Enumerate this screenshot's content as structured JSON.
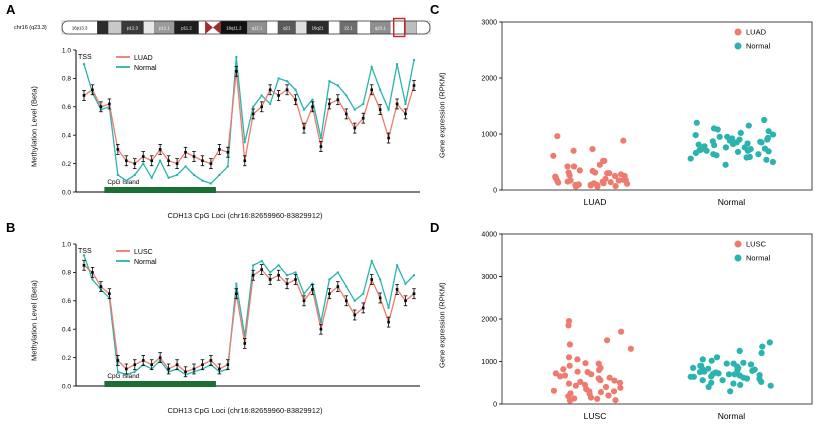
{
  "panels": {
    "a": {
      "letter": "A"
    },
    "b": {
      "letter": "B"
    },
    "c": {
      "letter": "C"
    },
    "d": {
      "letter": "D"
    }
  },
  "colors": {
    "cancer": "#EE7B6F",
    "normal": "#2BB3AF",
    "island": "#1b6e34",
    "marker": "#000000",
    "frame": "#444444",
    "highlight": "#d81e1e"
  },
  "ideogram": {
    "chrom_label": "chr16 (q23.3)",
    "highlight_pos": 0.915,
    "bands": [
      {
        "label": "16p13.3",
        "fill": "#ffffff",
        "tc": "#000000",
        "w": 1.6
      },
      {
        "label": "",
        "fill": "#2b2b2b",
        "tc": "#fff",
        "w": 0.5
      },
      {
        "label": "",
        "fill": "#c8c8c8",
        "tc": "#000",
        "w": 0.6
      },
      {
        "label": "p12.3",
        "fill": "#3a3a3a",
        "tc": "#ffffff",
        "w": 1.0
      },
      {
        "label": "",
        "fill": "#e8e8e8",
        "tc": "#000",
        "w": 0.5
      },
      {
        "label": "p12.1",
        "fill": "#9a9a9a",
        "tc": "#ffffff",
        "w": 0.9
      },
      {
        "label": "p11.2",
        "fill": "#1f1f1f",
        "tc": "#ffffff",
        "w": 1.1
      },
      {
        "label": "",
        "fill": "#ffffff",
        "tc": "#000",
        "w": 0.3
      },
      {
        "cen": true,
        "label": "",
        "fill": "#a02c2c",
        "tc": "#fff",
        "w": 0.7
      },
      {
        "label": "16q11.2",
        "fill": "#111111",
        "tc": "#ffffff",
        "w": 1.2
      },
      {
        "label": "q12.1",
        "fill": "#8f8f8f",
        "tc": "#ffffff",
        "w": 0.9
      },
      {
        "label": "",
        "fill": "#ffffff",
        "tc": "#000",
        "w": 0.5
      },
      {
        "label": "q21",
        "fill": "#5a5a5a",
        "tc": "#ffffff",
        "w": 0.8
      },
      {
        "label": "",
        "fill": "#e0e0e0",
        "tc": "#000",
        "w": 0.5
      },
      {
        "label": "16q21",
        "fill": "#2b2b2b",
        "tc": "#ffffff",
        "w": 1.0
      },
      {
        "label": "",
        "fill": "#ffffff",
        "tc": "#000",
        "w": 0.5
      },
      {
        "label": "22.1",
        "fill": "#6e6e6e",
        "tc": "#ffffff",
        "w": 0.8
      },
      {
        "label": "",
        "fill": "#ffffff",
        "tc": "#000",
        "w": 0.6
      },
      {
        "label": "q23.1",
        "fill": "#8f8f8f",
        "tc": "#ffffff",
        "w": 0.9
      },
      {
        "label": "",
        "fill": "#ffffff",
        "tc": "#000",
        "w": 0.7
      },
      {
        "label": "",
        "fill": "#bdbdbd",
        "tc": "#000",
        "w": 0.5
      },
      {
        "label": "",
        "fill": "#ffffff",
        "tc": "#000",
        "w": 0.6
      }
    ]
  },
  "chart_data": [
    {
      "type": "line",
      "panel": "A",
      "xlabel": "CDH13 CpG Loci (chr16:82659960-83829912)",
      "ylabel": "Methylation Level (Beta)",
      "ylim": [
        0,
        1
      ],
      "yticks": [
        0.0,
        0.2,
        0.4,
        0.6,
        0.8,
        1.0
      ],
      "annotations": {
        "tss": "TSS",
        "cpg_island": {
          "label": "CpG Island",
          "start_index": 3,
          "end_index": 15
        }
      },
      "legend_position": "top-left-inside",
      "series": [
        {
          "name": "LUAD",
          "values": [
            0.68,
            0.72,
            0.6,
            0.62,
            0.3,
            0.22,
            0.2,
            0.25,
            0.22,
            0.3,
            0.22,
            0.2,
            0.28,
            0.25,
            0.22,
            0.2,
            0.3,
            0.28,
            0.85,
            0.22,
            0.55,
            0.6,
            0.72,
            0.68,
            0.72,
            0.65,
            0.45,
            0.6,
            0.32,
            0.62,
            0.65,
            0.55,
            0.45,
            0.52,
            0.72,
            0.58,
            0.38,
            0.62,
            0.55,
            0.75
          ]
        },
        {
          "name": "Normal",
          "values": [
            0.9,
            0.7,
            0.58,
            0.6,
            0.12,
            0.08,
            0.12,
            0.2,
            0.1,
            0.22,
            0.1,
            0.12,
            0.18,
            0.12,
            0.08,
            0.06,
            0.12,
            0.18,
            0.95,
            0.35,
            0.6,
            0.68,
            0.62,
            0.8,
            0.78,
            0.72,
            0.58,
            0.65,
            0.38,
            0.78,
            0.75,
            0.68,
            0.58,
            0.62,
            0.88,
            0.72,
            0.58,
            0.9,
            0.62,
            0.93
          ]
        }
      ]
    },
    {
      "type": "line",
      "panel": "B",
      "xlabel": "CDH13 CpG Loci (chr16:82659960-83829912)",
      "ylabel": "Methylation Level (Beta)",
      "ylim": [
        0,
        1
      ],
      "yticks": [
        0.0,
        0.2,
        0.4,
        0.6,
        0.8,
        1.0
      ],
      "annotations": {
        "tss": "TSS",
        "cpg_island": {
          "label": "CpG Island",
          "start_index": 3,
          "end_index": 15
        }
      },
      "legend_position": "top-left-inside",
      "series": [
        {
          "name": "LUSC",
          "values": [
            0.85,
            0.8,
            0.7,
            0.65,
            0.18,
            0.12,
            0.15,
            0.18,
            0.15,
            0.2,
            0.12,
            0.15,
            0.1,
            0.12,
            0.15,
            0.18,
            0.12,
            0.15,
            0.65,
            0.3,
            0.78,
            0.82,
            0.75,
            0.78,
            0.72,
            0.75,
            0.6,
            0.68,
            0.4,
            0.65,
            0.7,
            0.6,
            0.5,
            0.55,
            0.75,
            0.62,
            0.45,
            0.68,
            0.6,
            0.65
          ]
        },
        {
          "name": "Normal",
          "values": [
            0.92,
            0.75,
            0.68,
            0.62,
            0.1,
            0.08,
            0.1,
            0.15,
            0.12,
            0.18,
            0.1,
            0.12,
            0.08,
            0.1,
            0.12,
            0.15,
            0.1,
            0.12,
            0.72,
            0.35,
            0.85,
            0.88,
            0.8,
            0.85,
            0.78,
            0.8,
            0.65,
            0.72,
            0.45,
            0.75,
            0.8,
            0.7,
            0.6,
            0.65,
            0.88,
            0.75,
            0.55,
            0.85,
            0.72,
            0.78
          ]
        }
      ]
    },
    {
      "type": "scatter",
      "panel": "C",
      "ylabel": "Gene expression (RPKM)",
      "ylim": [
        0,
        3000
      ],
      "yticks": [
        0,
        1000,
        2000,
        3000
      ],
      "categories": [
        "LUAD",
        "Normal"
      ],
      "legend_position": "top-right-inside",
      "series": [
        {
          "name": "LUAD",
          "values": [
            120,
            80,
            250,
            300,
            150,
            90,
            60,
            200,
            180,
            340,
            420,
            110,
            70,
            95,
            260,
            310,
            140,
            520,
            610,
            730,
            880,
            960,
            150,
            220,
            90,
            130,
            310,
            170,
            60,
            240,
            420,
            180,
            120,
            280,
            350,
            95,
            210,
            160,
            450,
            520,
            700,
            300,
            170,
            100,
            250
          ]
        },
        {
          "name": "Normal",
          "values": [
            850,
            920,
            700,
            640,
            1100,
            980,
            760,
            580,
            830,
            900,
            1200,
            1050,
            450,
            690,
            720,
            810,
            560,
            950,
            880,
            1020,
            740,
            660,
            590,
            930,
            870,
            1150,
            780,
            820,
            640,
            710,
            990,
            850,
            540,
            760,
            680,
            1080,
            900,
            620,
            730,
            800,
            950,
            860,
            700,
            500,
            1250
          ]
        }
      ]
    },
    {
      "type": "scatter",
      "panel": "D",
      "ylabel": "Gene expression (RPKM)",
      "ylim": [
        0,
        4000
      ],
      "yticks": [
        0,
        1000,
        2000,
        3000,
        4000
      ],
      "categories": [
        "LUSC",
        "Normal"
      ],
      "legend_position": "top-right-inside",
      "series": [
        {
          "name": "LUSC",
          "values": [
            1850,
            1950,
            1700,
            1500,
            300,
            450,
            120,
            800,
            950,
            600,
            200,
            1100,
            700,
            350,
            80,
            500,
            850,
            1300,
            400,
            650,
            900,
            250,
            150,
            1050,
            750,
            550,
            300,
            480,
            820,
            620,
            180,
            90,
            1400,
            380,
            720,
            560,
            240,
            960,
            430,
            310,
            670,
            130,
            520,
            280,
            760
          ]
        },
        {
          "name": "Normal",
          "values": [
            800,
            950,
            700,
            1200,
            1450,
            600,
            850,
            1050,
            500,
            750,
            900,
            650,
            1100,
            400,
            820,
            560,
            930,
            700,
            480,
            1250,
            880,
            640,
            760,
            1020,
            590,
            830,
            710,
            950,
            450,
            670,
            780,
            520,
            900,
            1350,
            620,
            740,
            560,
            810,
            680,
            430,
            970,
            850,
            300,
            720,
            640
          ]
        }
      ]
    }
  ]
}
